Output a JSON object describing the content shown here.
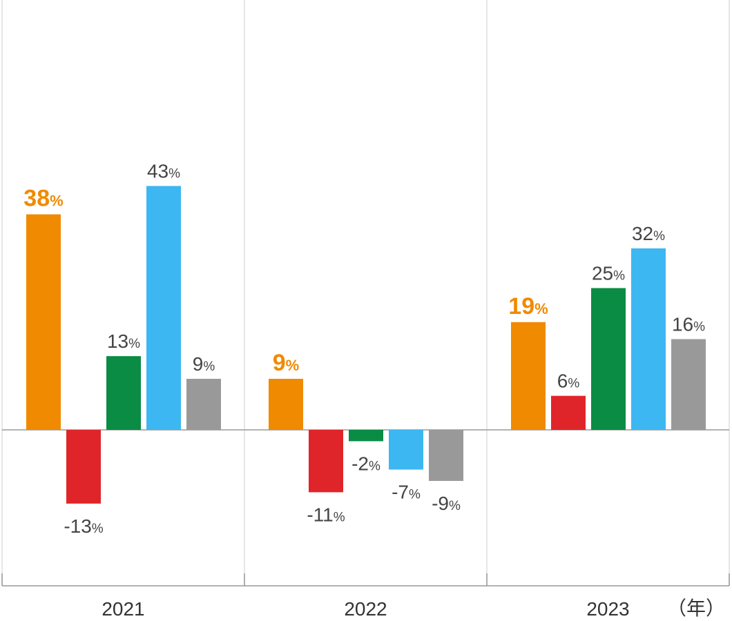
{
  "chart_data": {
    "type": "bar",
    "categories": [
      "2021",
      "2022",
      "2023"
    ],
    "unit_label": "（年）",
    "value_suffix": "%",
    "ylim": [
      -20,
      48
    ],
    "grid": false,
    "highlight_series_index": 0,
    "series": [
      {
        "color": "#F08A00",
        "values": [
          38,
          9,
          19
        ]
      },
      {
        "color": "#E0252A",
        "values": [
          -13,
          -11,
          6
        ]
      },
      {
        "color": "#0A8C45",
        "values": [
          13,
          -2,
          25
        ]
      },
      {
        "color": "#3DB7F2",
        "values": [
          43,
          -7,
          32
        ]
      },
      {
        "color": "#999999",
        "values": [
          9,
          -9,
          16
        ]
      }
    ]
  }
}
